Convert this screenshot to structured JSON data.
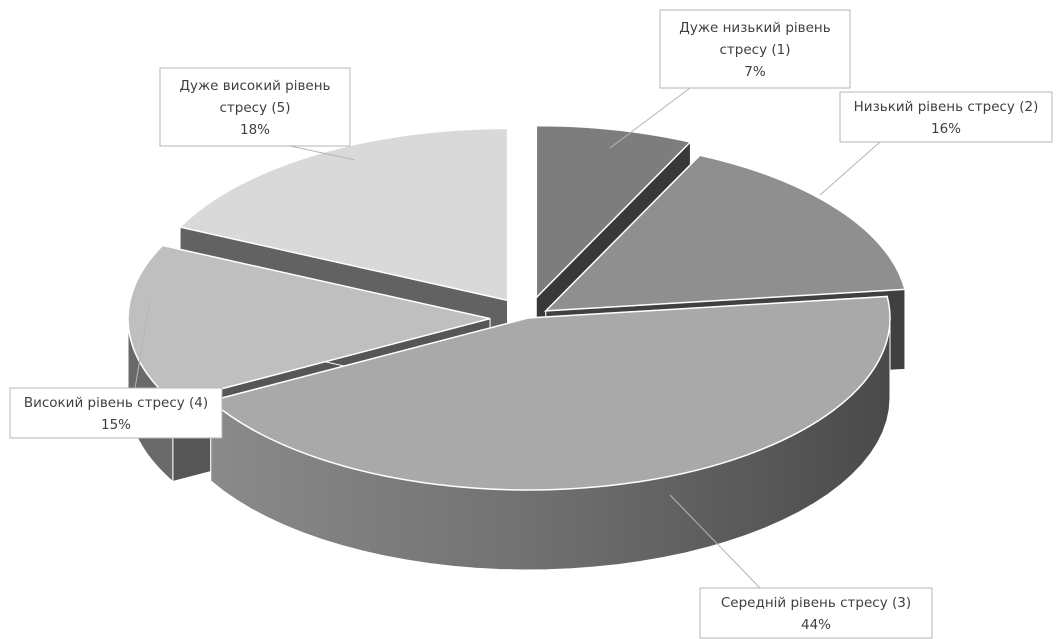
{
  "chart_data": {
    "type": "pie",
    "variant": "3d-exploded",
    "title": "",
    "slices": [
      {
        "label_lines": [
          "Дуже низький рівень",
          "стресу (1)"
        ],
        "label": "Дуже низький рівень стресу (1)",
        "value": 7,
        "percent": "7%",
        "color": "#7d7d7d"
      },
      {
        "label_lines": [
          "Низький рівень стресу (2)"
        ],
        "label": "Низький рівень стресу (2)",
        "value": 16,
        "percent": "16%",
        "color": "#8f8f8f"
      },
      {
        "label_lines": [
          "Середній рівень стресу (3)"
        ],
        "label": "Середній рівень стресу (3)",
        "value": 44,
        "percent": "44%",
        "color": "#a9a9a9"
      },
      {
        "label_lines": [
          "Високий рівень стресу (4)"
        ],
        "label": "Високий рівень стресу (4)",
        "value": 15,
        "percent": "15%",
        "color": "#bfbfbf"
      },
      {
        "label_lines": [
          "Дуже високий рівень",
          "стресу (5)"
        ],
        "label": "Дуже високий рівень стресу (5)",
        "value": 18,
        "percent": "18%",
        "color": "#d9d9d9"
      }
    ]
  }
}
